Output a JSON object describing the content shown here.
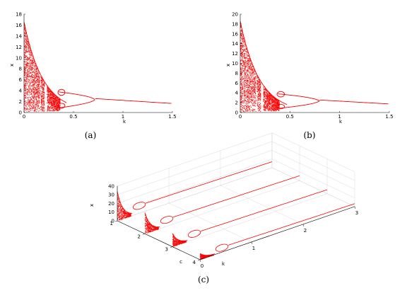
{
  "chart_data": [
    {
      "id": "a",
      "type": "scatter",
      "caption": "(a)",
      "xlabel": "k",
      "ylabel": "x",
      "xlim": [
        0,
        1.5
      ],
      "ylim": [
        0,
        18
      ],
      "x_ticks": [
        "0",
        "0.5",
        "1",
        "1.5"
      ],
      "y_ticks": [
        "0",
        "2",
        "4",
        "6",
        "8",
        "10",
        "12",
        "14",
        "16",
        "18"
      ],
      "color": "#ff0000",
      "peak_x_at_k0": 16.5,
      "period_doubling_k": [
        0.39,
        0.72
      ]
    },
    {
      "id": "b",
      "type": "scatter",
      "caption": "(b)",
      "xlabel": "k",
      "ylabel": "x",
      "xlim": [
        0,
        1.5
      ],
      "ylim": [
        0,
        20
      ],
      "x_ticks": [
        "0",
        "0.5",
        "1",
        "1.5"
      ],
      "y_ticks": [
        "0",
        "2",
        "4",
        "6",
        "8",
        "10",
        "12",
        "14",
        "16",
        "18",
        "20"
      ],
      "color": "#ff0000",
      "peak_x_at_k0": 18.5,
      "period_doubling_k": [
        0.42,
        0.8
      ]
    },
    {
      "id": "c",
      "type": "scatter",
      "caption": "(c)",
      "xlabel": "k",
      "ylabel": "c",
      "zlabel": "x",
      "k_ticks": [
        "0",
        "1",
        "2",
        "3"
      ],
      "c_ticks": [
        "1",
        "2",
        "3",
        "4"
      ],
      "x_ticks": [
        "0",
        "10",
        "20",
        "30",
        "40"
      ],
      "klim": [
        0,
        3
      ],
      "clim": [
        1,
        4
      ],
      "zlim": [
        0,
        40
      ],
      "color": "#ff0000",
      "series": [
        {
          "c": 1,
          "peak_x": 33
        },
        {
          "c": 2,
          "peak_x": 24
        },
        {
          "c": 3,
          "peak_x": 15
        },
        {
          "c": 4,
          "peak_x": 7
        }
      ]
    }
  ]
}
